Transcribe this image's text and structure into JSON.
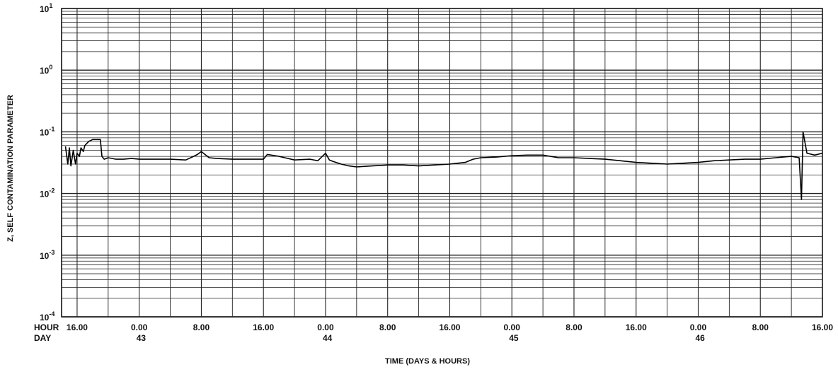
{
  "chart_data": {
    "type": "line",
    "title": "",
    "ylabel": "Z, SELF CONTAMINATION PARAMETER",
    "xlabel": "TIME (DAYS & HOURS)",
    "y_scale": "log",
    "ylim": [
      0.0001,
      10
    ],
    "y_ticks": [
      {
        "base": "10",
        "exp": "1"
      },
      {
        "base": "10",
        "exp": "0"
      },
      {
        "base": "10",
        "exp": "-1"
      },
      {
        "base": "10",
        "exp": "-2"
      },
      {
        "base": "10",
        "exp": "-3"
      },
      {
        "base": "10",
        "exp": "-4"
      }
    ],
    "x_unit": "hours since 16.00 on day 42",
    "xlim": [
      -2,
      96
    ],
    "hour_row_label": "HOUR",
    "day_row_label": "DAY",
    "hour_ticks": [
      {
        "x": 0,
        "label": "16.00"
      },
      {
        "x": 8,
        "label": "0.00"
      },
      {
        "x": 16,
        "label": "8.00"
      },
      {
        "x": 24,
        "label": "16.00"
      },
      {
        "x": 32,
        "label": "0.00"
      },
      {
        "x": 40,
        "label": "8.00"
      },
      {
        "x": 48,
        "label": "16.00"
      },
      {
        "x": 56,
        "label": "0.00"
      },
      {
        "x": 64,
        "label": "8.00"
      },
      {
        "x": 72,
        "label": "16.00"
      },
      {
        "x": 80,
        "label": "0.00"
      },
      {
        "x": 88,
        "label": "8.00"
      },
      {
        "x": 96,
        "label": "16.00"
      }
    ],
    "day_ticks": [
      {
        "x": 8,
        "label": "43"
      },
      {
        "x": 32,
        "label": "44"
      },
      {
        "x": 56,
        "label": "45"
      },
      {
        "x": 80,
        "label": "46"
      }
    ],
    "grid": true,
    "series": [
      {
        "name": "",
        "x": [
          -1.5,
          -1.2,
          -1.0,
          -0.8,
          -0.5,
          -0.2,
          0.0,
          0.3,
          0.5,
          0.8,
          1.0,
          1.5,
          2.0,
          2.5,
          3.0,
          3.2,
          3.5,
          4.0,
          5.0,
          6.0,
          7.0,
          8.0,
          10.0,
          12.0,
          14.0,
          15.0,
          15.5,
          16.0,
          17.0,
          18.0,
          20.0,
          22.0,
          24.0,
          24.5,
          26.0,
          28.0,
          30.0,
          31.0,
          32.0,
          32.5,
          33.0,
          34.0,
          35.0,
          36.0,
          38.0,
          40.0,
          42.0,
          44.0,
          46.0,
          48.0,
          49.0,
          50.0,
          51.0,
          52.0,
          54.0,
          56.0,
          58.0,
          60.0,
          62.0,
          64.0,
          66.0,
          68.0,
          70.0,
          72.0,
          74.0,
          76.0,
          78.0,
          80.0,
          82.0,
          84.0,
          86.0,
          88.0,
          90.0,
          92.0,
          93.0,
          93.3,
          93.5,
          94.0,
          95.0,
          96.0
        ],
        "y": [
          0.058,
          0.03,
          0.055,
          0.028,
          0.05,
          0.03,
          0.045,
          0.04,
          0.055,
          0.048,
          0.06,
          0.07,
          0.075,
          0.075,
          0.075,
          0.04,
          0.036,
          0.038,
          0.036,
          0.036,
          0.037,
          0.036,
          0.036,
          0.036,
          0.035,
          0.04,
          0.043,
          0.048,
          0.038,
          0.037,
          0.036,
          0.036,
          0.036,
          0.043,
          0.04,
          0.035,
          0.036,
          0.034,
          0.045,
          0.035,
          0.033,
          0.03,
          0.028,
          0.027,
          0.028,
          0.029,
          0.029,
          0.028,
          0.029,
          0.03,
          0.031,
          0.032,
          0.036,
          0.038,
          0.039,
          0.041,
          0.042,
          0.042,
          0.038,
          0.038,
          0.037,
          0.036,
          0.034,
          0.032,
          0.031,
          0.03,
          0.031,
          0.032,
          0.034,
          0.035,
          0.036,
          0.036,
          0.038,
          0.04,
          0.038,
          0.008,
          0.1,
          0.045,
          0.042,
          0.045
        ]
      }
    ]
  }
}
